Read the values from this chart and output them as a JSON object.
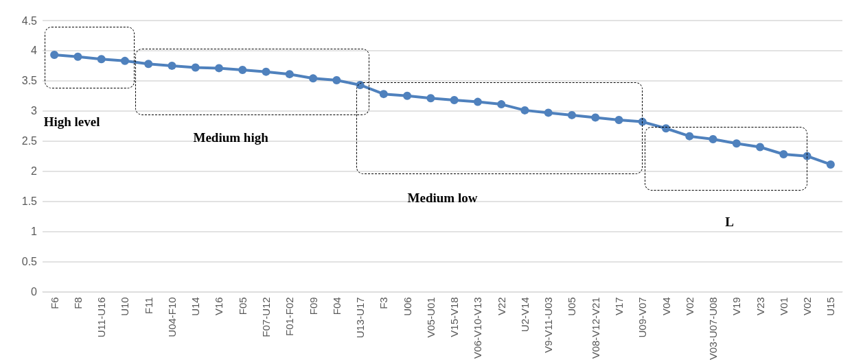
{
  "chart_data": {
    "type": "line",
    "categories": [
      "F6",
      "F8",
      "U11-U16",
      "U10",
      "F11",
      "U04-F10",
      "U14",
      "V16",
      "F05",
      "F07-U12",
      "F01-F02",
      "F09",
      "F04",
      "U13-U17",
      "F3",
      "U06",
      "V05-U01",
      "V15-V18",
      "V06-V10-V13",
      "V22",
      "U2-V14",
      "V9-V11-U03",
      "U05",
      "V08-V12-V21",
      "V17",
      "U09-V07",
      "V04",
      "V02",
      "V03-U07-U08",
      "V19",
      "V23",
      "V01",
      "V02",
      "U15"
    ],
    "series": [
      {
        "color": "#4f81bd",
        "values": [
          3.93,
          3.9,
          3.86,
          3.83,
          3.78,
          3.75,
          3.72,
          3.71,
          3.68,
          3.65,
          3.61,
          3.54,
          3.51,
          3.43,
          3.28,
          3.25,
          3.21,
          3.18,
          3.15,
          3.11,
          3.01,
          2.97,
          2.93,
          2.89,
          2.85,
          2.82,
          2.71,
          2.58,
          2.53,
          2.46,
          2.4,
          2.28,
          2.25,
          2.11
        ]
      }
    ],
    "ylim": [
      0,
      4.5
    ],
    "yticks": [
      0,
      0.5,
      1,
      1.5,
      2,
      2.5,
      3,
      3.5,
      4,
      4.5
    ],
    "grid": "y",
    "marker": "circle",
    "line_style": "solid",
    "annotations": [
      "High level",
      "Medium high",
      "Medium low",
      "L"
    ]
  }
}
